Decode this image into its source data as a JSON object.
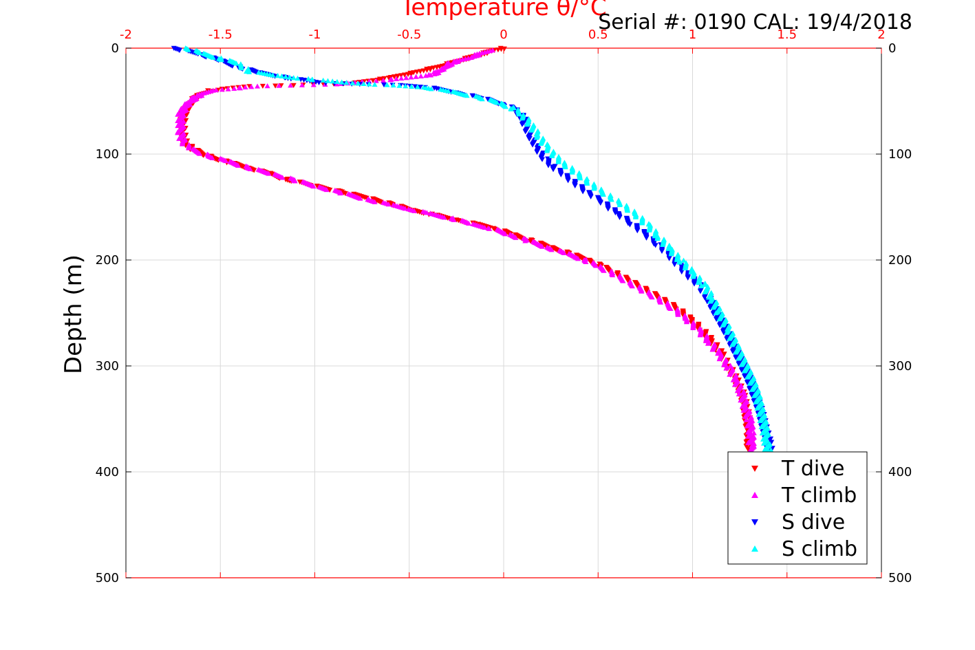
{
  "chart_data": {
    "type": "scatter",
    "title": "",
    "info_text": "Serial #: 0190  CAL: 19/4/2018",
    "xlabel": "Temperature θ/°C",
    "ylabel": "Depth (m)",
    "xlim": [
      -2,
      2
    ],
    "ylim": [
      0,
      500
    ],
    "y_reversed": true,
    "x_axis_position": "top",
    "y_axis_labels": "both",
    "grid": true,
    "legend_position": "bottom-right",
    "x_ticks": [
      "-2",
      "-1.5",
      "-1",
      "-0.5",
      "0",
      "0.5",
      "1",
      "1.5",
      "2"
    ],
    "y_ticks": [
      "0",
      "100",
      "200",
      "300",
      "400",
      "500"
    ],
    "series": [
      {
        "name": "T dive",
        "color": "#ff0000",
        "marker": "triangle-down",
        "points": [
          [
            0,
            0
          ],
          [
            -0.05,
            2
          ],
          [
            -0.2,
            10
          ],
          [
            -0.35,
            18
          ],
          [
            -0.5,
            24
          ],
          [
            -0.6,
            28
          ],
          [
            -0.8,
            33
          ],
          [
            -1.1,
            35
          ],
          [
            -1.35,
            36
          ],
          [
            -1.55,
            40
          ],
          [
            -1.62,
            45
          ],
          [
            -1.66,
            52
          ],
          [
            -1.69,
            60
          ],
          [
            -1.7,
            70
          ],
          [
            -1.7,
            80
          ],
          [
            -1.69,
            88
          ],
          [
            -1.65,
            95
          ],
          [
            -1.55,
            103
          ],
          [
            -1.45,
            108
          ],
          [
            -1.35,
            113
          ],
          [
            -1.25,
            118
          ],
          [
            -1.15,
            124
          ],
          [
            -1.0,
            130
          ],
          [
            -0.85,
            136
          ],
          [
            -0.7,
            142
          ],
          [
            -0.58,
            148
          ],
          [
            -0.48,
            153
          ],
          [
            -0.38,
            157
          ],
          [
            -0.25,
            162
          ],
          [
            -0.15,
            166
          ],
          [
            -0.05,
            170
          ],
          [
            0.05,
            176
          ],
          [
            0.15,
            182
          ],
          [
            0.25,
            188
          ],
          [
            0.35,
            194
          ],
          [
            0.45,
            200
          ],
          [
            0.52,
            206
          ],
          [
            0.6,
            213
          ],
          [
            0.68,
            221
          ],
          [
            0.76,
            229
          ],
          [
            0.84,
            237
          ],
          [
            0.92,
            246
          ],
          [
            0.99,
            256
          ],
          [
            1.05,
            266
          ],
          [
            1.1,
            276
          ],
          [
            1.15,
            288
          ],
          [
            1.19,
            300
          ],
          [
            1.23,
            313
          ],
          [
            1.26,
            325
          ],
          [
            1.28,
            338
          ],
          [
            1.29,
            350
          ],
          [
            1.3,
            362
          ],
          [
            1.3,
            375
          ],
          [
            1.3,
            380
          ]
        ]
      },
      {
        "name": "T climb",
        "color": "#ff00ff",
        "marker": "triangle-up",
        "points": [
          [
            -0.07,
            2
          ],
          [
            -0.12,
            5
          ],
          [
            -0.18,
            9
          ],
          [
            -0.28,
            14
          ],
          [
            -0.32,
            20
          ],
          [
            -0.38,
            25
          ],
          [
            -0.6,
            30
          ],
          [
            -0.9,
            34
          ],
          [
            -1.3,
            36
          ],
          [
            -1.55,
            40
          ],
          [
            -1.63,
            46
          ],
          [
            -1.68,
            54
          ],
          [
            -1.71,
            62
          ],
          [
            -1.71,
            70
          ],
          [
            -1.71,
            80
          ],
          [
            -1.7,
            88
          ],
          [
            -1.66,
            95
          ],
          [
            -1.56,
            102
          ],
          [
            -1.46,
            107
          ],
          [
            -1.35,
            113
          ],
          [
            -1.22,
            119
          ],
          [
            -1.1,
            125
          ],
          [
            -0.98,
            131
          ],
          [
            -0.85,
            137
          ],
          [
            -0.72,
            143
          ],
          [
            -0.6,
            148
          ],
          [
            -0.5,
            152
          ],
          [
            -0.4,
            156
          ],
          [
            -0.27,
            161
          ],
          [
            -0.17,
            166
          ],
          [
            -0.07,
            170
          ],
          [
            0.03,
            176
          ],
          [
            0.13,
            182
          ],
          [
            0.23,
            188
          ],
          [
            0.33,
            194
          ],
          [
            0.43,
            200
          ],
          [
            0.5,
            206
          ],
          [
            0.58,
            213
          ],
          [
            0.66,
            221
          ],
          [
            0.74,
            229
          ],
          [
            0.82,
            237
          ],
          [
            0.9,
            246
          ],
          [
            0.97,
            256
          ],
          [
            1.03,
            266
          ],
          [
            1.09,
            277
          ],
          [
            1.14,
            289
          ],
          [
            1.19,
            301
          ],
          [
            1.23,
            314
          ],
          [
            1.26,
            326
          ],
          [
            1.28,
            339
          ],
          [
            1.3,
            351
          ],
          [
            1.31,
            364
          ],
          [
            1.31,
            376
          ],
          [
            1.31,
            380
          ]
        ]
      },
      {
        "name": "S dive",
        "color": "#0000ff",
        "marker": "triangle-down",
        "points": [
          [
            -1.75,
            0
          ],
          [
            -1.7,
            2
          ],
          [
            -1.6,
            6
          ],
          [
            -1.5,
            12
          ],
          [
            -1.4,
            18
          ],
          [
            -1.3,
            23
          ],
          [
            -1.15,
            28
          ],
          [
            -0.95,
            33
          ],
          [
            -0.75,
            34
          ],
          [
            -0.55,
            35
          ],
          [
            -0.4,
            37
          ],
          [
            -0.25,
            42
          ],
          [
            -0.1,
            48
          ],
          [
            0.0,
            53
          ],
          [
            0.06,
            58
          ],
          [
            0.1,
            65
          ],
          [
            0.12,
            75
          ],
          [
            0.15,
            85
          ],
          [
            0.18,
            95
          ],
          [
            0.22,
            105
          ],
          [
            0.26,
            112
          ],
          [
            0.32,
            120
          ],
          [
            0.38,
            128
          ],
          [
            0.44,
            136
          ],
          [
            0.52,
            145
          ],
          [
            0.6,
            156
          ],
          [
            0.68,
            166
          ],
          [
            0.75,
            176
          ],
          [
            0.82,
            186
          ],
          [
            0.88,
            196
          ],
          [
            0.93,
            206
          ],
          [
            0.98,
            215
          ],
          [
            1.04,
            225
          ],
          [
            1.09,
            238
          ],
          [
            1.13,
            252
          ],
          [
            1.18,
            268
          ],
          [
            1.22,
            283
          ],
          [
            1.26,
            298
          ],
          [
            1.3,
            313
          ],
          [
            1.33,
            328
          ],
          [
            1.36,
            343
          ],
          [
            1.38,
            358
          ],
          [
            1.4,
            370
          ],
          [
            1.41,
            380
          ]
        ]
      },
      {
        "name": "S climb",
        "color": "#00ffff",
        "marker": "triangle-up",
        "points": [
          [
            -1.68,
            0
          ],
          [
            -1.6,
            5
          ],
          [
            -1.5,
            10
          ],
          [
            -1.4,
            15
          ],
          [
            -1.35,
            22
          ],
          [
            -1.2,
            26
          ],
          [
            -1.0,
            30
          ],
          [
            -0.8,
            33
          ],
          [
            -0.6,
            35
          ],
          [
            -0.42,
            37
          ],
          [
            -0.28,
            41
          ],
          [
            -0.12,
            47
          ],
          [
            -0.02,
            52
          ],
          [
            0.05,
            57
          ],
          [
            0.1,
            63
          ],
          [
            0.14,
            72
          ],
          [
            0.18,
            82
          ],
          [
            0.22,
            92
          ],
          [
            0.26,
            100
          ],
          [
            0.31,
            108
          ],
          [
            0.37,
            116
          ],
          [
            0.43,
            124
          ],
          [
            0.49,
            132
          ],
          [
            0.56,
            140
          ],
          [
            0.63,
            148
          ],
          [
            0.7,
            157
          ],
          [
            0.76,
            167
          ],
          [
            0.82,
            178
          ],
          [
            0.88,
            190
          ],
          [
            0.94,
            201
          ],
          [
            1.0,
            212
          ],
          [
            1.06,
            224
          ],
          [
            1.1,
            236
          ],
          [
            1.14,
            250
          ],
          [
            1.19,
            266
          ],
          [
            1.23,
            282
          ],
          [
            1.27,
            297
          ],
          [
            1.31,
            312
          ],
          [
            1.34,
            327
          ],
          [
            1.36,
            342
          ],
          [
            1.38,
            357
          ],
          [
            1.39,
            370
          ],
          [
            1.4,
            380
          ]
        ]
      }
    ]
  }
}
